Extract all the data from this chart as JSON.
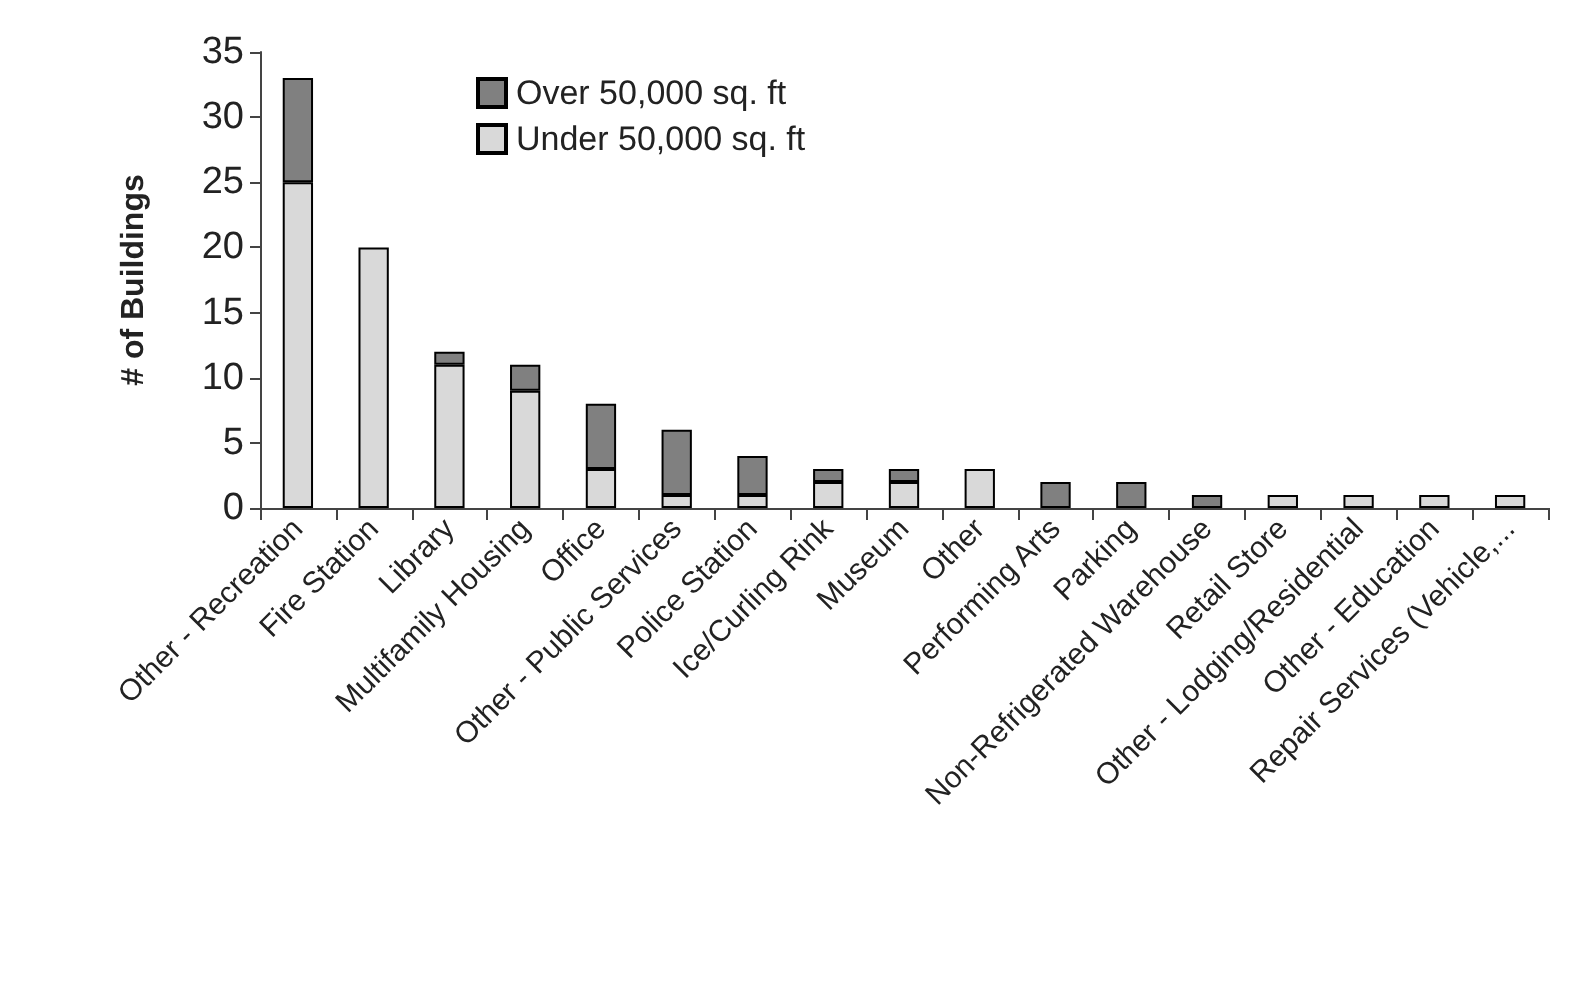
{
  "chart_data": {
    "type": "bar",
    "stacked": true,
    "ylabel": "# of Buildings",
    "categories": [
      "Other - Recreation",
      "Fire Station",
      "Library",
      "Multifamily Housing",
      "Office",
      "Other - Public Services",
      "Police Station",
      "Ice/Curling Rink",
      "Museum",
      "Other",
      "Performing Arts",
      "Parking",
      "Non-Refrigerated Warehouse",
      "Retail Store",
      "Other - Lodging/Residential",
      "Other - Education",
      "Repair Services (Vehicle,..."
    ],
    "series": [
      {
        "name": "Under 50,000 sq. ft",
        "color": "#d9d9d9",
        "values": [
          25,
          20,
          11,
          9,
          3,
          1,
          1,
          2,
          2,
          3,
          0,
          0,
          0,
          1,
          1,
          1,
          1
        ]
      },
      {
        "name": "Over 50,000 sq. ft",
        "color": "#808080",
        "values": [
          8,
          0,
          1,
          2,
          5,
          5,
          3,
          1,
          1,
          0,
          2,
          2,
          1,
          0,
          0,
          0,
          0
        ]
      }
    ],
    "ylim": [
      0,
      35
    ],
    "yticks": [
      0,
      5,
      10,
      15,
      20,
      25,
      30,
      35
    ],
    "grid": false,
    "legend": "top"
  }
}
